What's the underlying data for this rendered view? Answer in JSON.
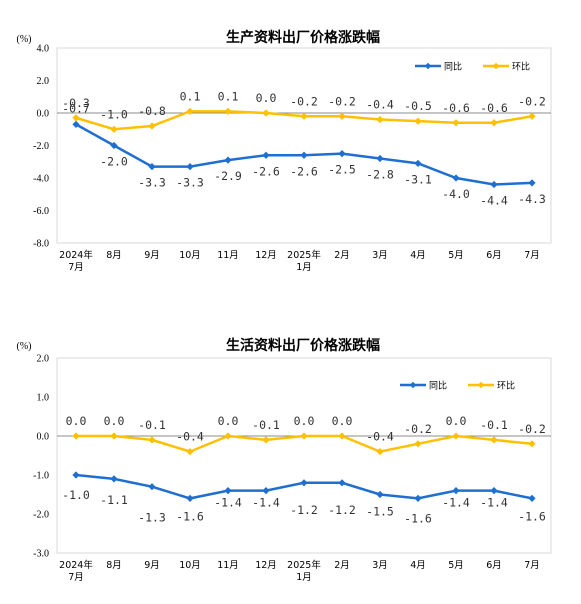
{
  "chart_data": [
    {
      "type": "line",
      "title": "生产资料出厂价格涨跌幅",
      "unit": "(%)",
      "categories": [
        [
          "2024年",
          "7月"
        ],
        [
          "8月"
        ],
        [
          "9月"
        ],
        [
          "10月"
        ],
        [
          "11月"
        ],
        [
          "12月"
        ],
        [
          "2025年",
          "1月"
        ],
        [
          "2月"
        ],
        [
          "3月"
        ],
        [
          "4月"
        ],
        [
          "5月"
        ],
        [
          "6月"
        ],
        [
          "7月"
        ]
      ],
      "ylim": [
        -8.0,
        4.0
      ],
      "yticks": [
        "4.0",
        "2.0",
        "0.0",
        "-2.0",
        "-4.0",
        "-6.0",
        "-8.0"
      ],
      "series": [
        {
          "name": "同比",
          "color": "#1f6fd1",
          "values": [
            -0.7,
            -2.0,
            -3.3,
            -3.3,
            -2.9,
            -2.6,
            -2.6,
            -2.5,
            -2.8,
            -3.1,
            -4.0,
            -4.4,
            -4.3
          ],
          "labels": [
            "-0.7",
            "-2.0",
            "-3.3",
            "-3.3",
            "-2.9",
            "-2.6",
            "-2.6",
            "-2.5",
            "-2.8",
            "-3.1",
            "-4.0",
            "-4.4",
            "-4.3"
          ]
        },
        {
          "name": "环比",
          "color": "#ffc000",
          "values": [
            -0.3,
            -1.0,
            -0.8,
            0.1,
            0.1,
            0.0,
            -0.2,
            -0.2,
            -0.4,
            -0.5,
            -0.6,
            -0.6,
            -0.2
          ],
          "labels": [
            "-0.3",
            "-1.0",
            "-0.8",
            "0.1",
            "0.1",
            "0.0",
            "-0.2",
            "-0.2",
            "-0.4",
            "-0.5",
            "-0.6",
            "-0.6",
            "-0.2"
          ]
        }
      ],
      "legend": "top-right",
      "grid": false
    },
    {
      "type": "line",
      "title": "生活资料出厂价格涨跌幅",
      "unit": "(%)",
      "categories": [
        [
          "2024年",
          "7月"
        ],
        [
          "8月"
        ],
        [
          "9月"
        ],
        [
          "10月"
        ],
        [
          "11月"
        ],
        [
          "12月"
        ],
        [
          "2025年",
          "1月"
        ],
        [
          "2月"
        ],
        [
          "3月"
        ],
        [
          "4月"
        ],
        [
          "5月"
        ],
        [
          "6月"
        ],
        [
          "7月"
        ]
      ],
      "ylim": [
        -3.0,
        2.0
      ],
      "yticks": [
        "2.0",
        "1.0",
        "0.0",
        "-1.0",
        "-2.0",
        "-3.0"
      ],
      "series": [
        {
          "name": "同比",
          "color": "#1f6fd1",
          "values": [
            -1.0,
            -1.1,
            -1.3,
            -1.6,
            -1.4,
            -1.4,
            -1.2,
            -1.2,
            -1.5,
            -1.6,
            -1.4,
            -1.4,
            -1.6
          ],
          "labels": [
            "-1.0",
            "-1.1",
            "-1.3",
            "-1.6",
            "-1.4",
            "-1.4",
            "-1.2",
            "-1.2",
            "-1.5",
            "-1.6",
            "-1.4",
            "-1.4",
            "-1.6"
          ]
        },
        {
          "name": "环比",
          "color": "#ffc000",
          "values": [
            0.0,
            0.0,
            -0.1,
            -0.4,
            0.0,
            -0.1,
            0.0,
            0.0,
            -0.4,
            -0.2,
            0.0,
            -0.1,
            -0.2
          ],
          "labels": [
            "0.0",
            "0.0",
            "-0.1",
            "-0.4",
            "0.0",
            "-0.1",
            "0.0",
            "0.0",
            "-0.4",
            "-0.2",
            "0.0",
            "-0.1",
            "-0.2"
          ]
        }
      ],
      "legend": "top-right",
      "grid": false
    }
  ]
}
